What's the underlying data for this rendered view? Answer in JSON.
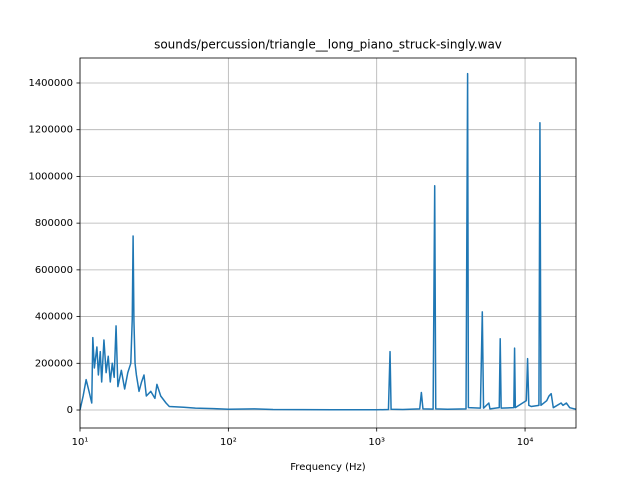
{
  "chart_data": {
    "type": "line",
    "title": "sounds/percussion/triangle__long_piano_struck-singly.wav",
    "x_label": "Frequency (Hz)",
    "x_scale": "log",
    "grid": true,
    "color": "#1f77b4",
    "xlim": [
      10,
      22050
    ],
    "ylim": [
      -77000,
      1507000
    ],
    "xticks": [
      {
        "value": 10,
        "label": "10¹"
      },
      {
        "value": 100,
        "label": "10²"
      },
      {
        "value": 1000,
        "label": "10³"
      },
      {
        "value": 10000,
        "label": "10⁴"
      }
    ],
    "yticks": [
      0,
      200000,
      400000,
      600000,
      800000,
      1000000,
      1200000,
      1400000
    ],
    "x": [
      10,
      10.5,
      11,
      11.5,
      12,
      12.2,
      12.5,
      13,
      13.3,
      13.7,
      14,
      14.5,
      15,
      15.5,
      16,
      16.5,
      17,
      17.5,
      18,
      19,
      20,
      21,
      22,
      22.5,
      22.8,
      23.1,
      23.5,
      24,
      25,
      26,
      27,
      28,
      30,
      32,
      33,
      35,
      38,
      40,
      50,
      60,
      80,
      100,
      150,
      200,
      500,
      1000,
      1200,
      1230,
      1250,
      1500,
      1950,
      2000,
      2050,
      2400,
      2460,
      2500,
      3000,
      4000,
      4100,
      4150,
      5000,
      5150,
      5250,
      5700,
      5800,
      6700,
      6800,
      6900,
      8400,
      8500,
      8600,
      10200,
      10400,
      10600,
      11000,
      12400,
      12600,
      12800,
      14000,
      14500,
      15000,
      15500,
      17500,
      18000,
      19000,
      20000,
      22050
    ],
    "values": [
      0,
      60000,
      130000,
      80000,
      30000,
      310000,
      180000,
      270000,
      150000,
      250000,
      120000,
      300000,
      160000,
      230000,
      120000,
      200000,
      140000,
      360000,
      100000,
      170000,
      90000,
      160000,
      200000,
      390000,
      745000,
      380000,
      200000,
      150000,
      80000,
      120000,
      150000,
      60000,
      80000,
      50000,
      110000,
      60000,
      30000,
      15000,
      12000,
      8000,
      6000,
      3000,
      5000,
      2000,
      1000,
      1000,
      2000,
      250000,
      3000,
      2000,
      5000,
      75000,
      5000,
      4000,
      960000,
      5000,
      3000,
      5000,
      1440000,
      10000,
      8000,
      420000,
      8000,
      30000,
      5000,
      10000,
      305000,
      8000,
      10000,
      265000,
      10000,
      40000,
      220000,
      20000,
      15000,
      20000,
      1230000,
      20000,
      40000,
      60000,
      70000,
      10000,
      30000,
      20000,
      30000,
      10000,
      3000
    ]
  }
}
